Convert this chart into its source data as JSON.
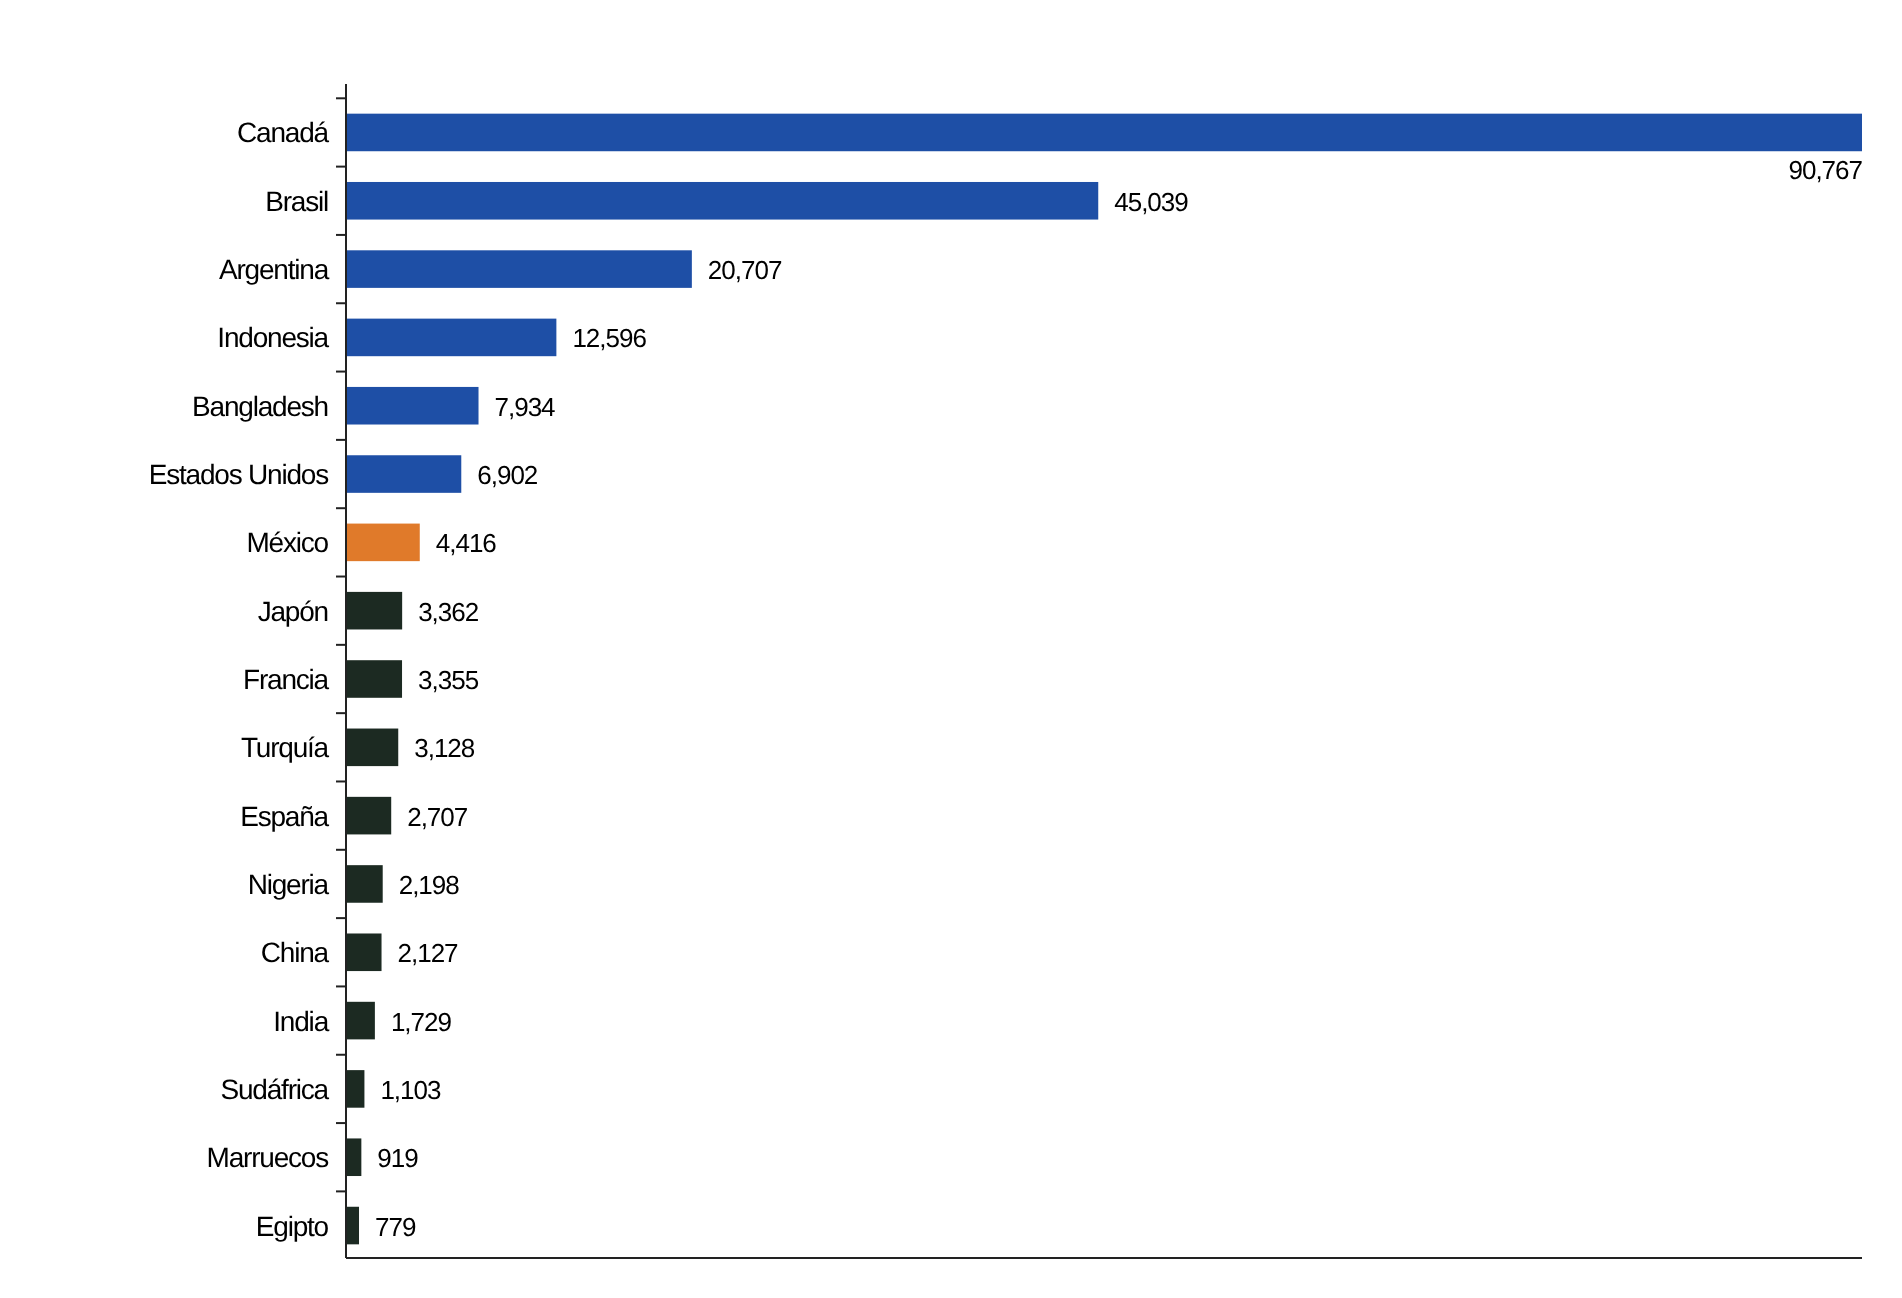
{
  "chart_data": {
    "type": "bar",
    "orientation": "horizontal",
    "categories": [
      "Canadá",
      "Brasil",
      "Argentina",
      "Indonesia",
      "Bangladesh",
      "Estados Unidos",
      "México",
      "Japón",
      "Francia",
      "Turquía",
      "España",
      "Nigeria",
      "China",
      "India",
      "Sudáfrica",
      "Marruecos",
      "Egipto"
    ],
    "values": [
      90767,
      45039,
      20707,
      12596,
      7934,
      6902,
      4416,
      3362,
      3355,
      3128,
      2707,
      2198,
      2127,
      1729,
      1103,
      919,
      779
    ],
    "colors": [
      "#1e4fa6",
      "#1e4fa6",
      "#1e4fa6",
      "#1e4fa6",
      "#1e4fa6",
      "#1e4fa6",
      "#e07a2a",
      "#1c2a22",
      "#1c2a22",
      "#1c2a22",
      "#1c2a22",
      "#1c2a22",
      "#1c2a22",
      "#1c2a22",
      "#1c2a22",
      "#1c2a22",
      "#1c2a22"
    ],
    "value_labels": [
      "90,767",
      "45,039",
      "20,707",
      "12,596",
      "7,934",
      "6,902",
      "4,416",
      "3,362",
      "3,355",
      "3,128",
      "2,707",
      "2,198",
      "2,127",
      "1,729",
      "1,103",
      "919",
      "779"
    ]
  }
}
